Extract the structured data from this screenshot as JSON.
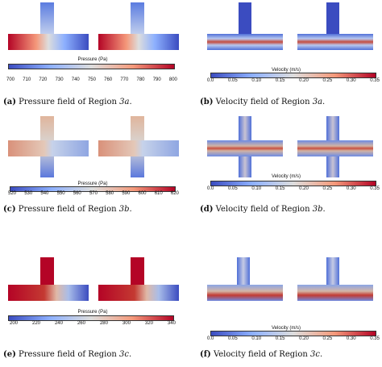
{
  "figure": {
    "panels": [
      {
        "id": "a",
        "caption_label": "(a)",
        "caption_text": "Pressure field of Region ",
        "caption_region": "3a",
        "caption_end": ".",
        "colorbar_title": "Pressure (Pa)",
        "ticks": [
          "700",
          "710",
          "720",
          "730",
          "740",
          "750",
          "760",
          "770",
          "780",
          "790",
          "800"
        ],
        "geometry": "T-down",
        "field": "pressure"
      },
      {
        "id": "b",
        "caption_label": "(b)",
        "caption_text": "Velocity field of Region ",
        "caption_region": "3a",
        "caption_end": ".",
        "colorbar_title": "Velocity (m/s)",
        "ticks": [
          "0.0",
          "0.05",
          "0.10",
          "0.15",
          "0.20",
          "0.25",
          "0.30",
          "0.35"
        ],
        "geometry": "T-down",
        "field": "velocity"
      },
      {
        "id": "c",
        "caption_label": "(c)",
        "caption_text": "Pressure field of Region ",
        "caption_region": "3b",
        "caption_end": ".",
        "colorbar_title": "Pressure (Pa)",
        "ticks": [
          "520",
          "530",
          "540",
          "550",
          "560",
          "570",
          "580",
          "590",
          "600",
          "610",
          "620"
        ],
        "geometry": "cross",
        "field": "pressure"
      },
      {
        "id": "d",
        "caption_label": "(d)",
        "caption_text": "Velocity field of Region ",
        "caption_region": "3b",
        "caption_end": ".",
        "colorbar_title": "Velocity (m/s)",
        "ticks": [
          "0.0",
          "0.05",
          "0.10",
          "0.15",
          "0.20",
          "0.25",
          "0.30",
          "0.35"
        ],
        "geometry": "cross",
        "field": "velocity"
      },
      {
        "id": "e",
        "caption_label": "(e)",
        "caption_text": "Pressure field of Region ",
        "caption_region": "3c",
        "caption_end": ".",
        "colorbar_title": "Pressure (Pa)",
        "ticks": [
          "200",
          "220",
          "240",
          "260",
          "280",
          "300",
          "320",
          "340"
        ],
        "geometry": "L-up",
        "field": "pressure"
      },
      {
        "id": "f",
        "caption_label": "(f)",
        "caption_text": "Velocity field of Region ",
        "caption_region": "3c",
        "caption_end": ".",
        "colorbar_title": "Velocity (m/s)",
        "ticks": [
          "0.0",
          "0.05",
          "0.10",
          "0.15",
          "0.20",
          "0.25",
          "0.30",
          "0.35"
        ],
        "geometry": "L-up",
        "field": "velocity"
      }
    ],
    "colors": {
      "cold": "#3b4cc0",
      "neutral": "#dddddd",
      "hot": "#b40426"
    }
  }
}
